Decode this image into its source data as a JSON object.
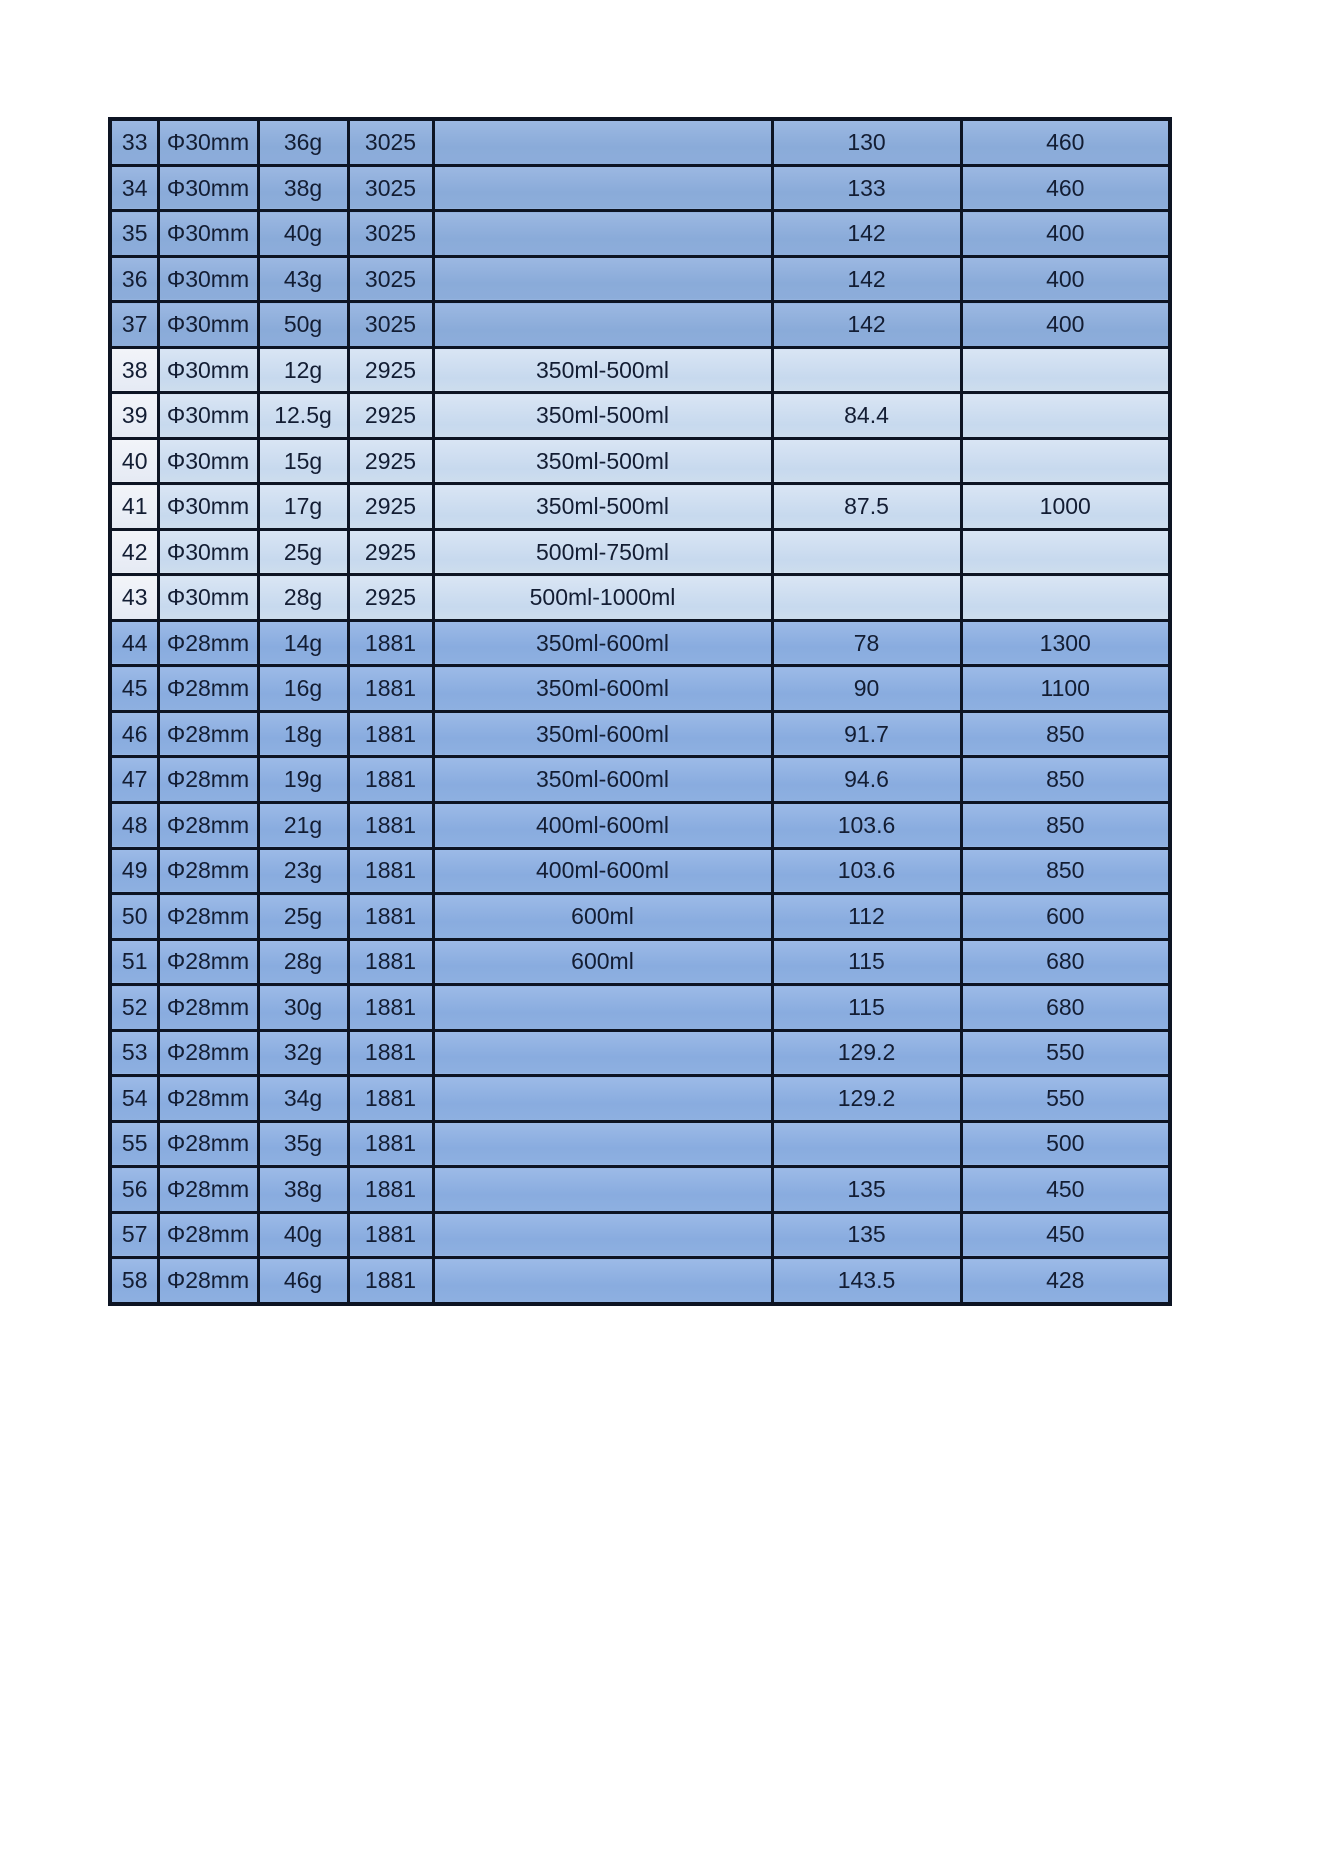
{
  "page": {
    "background": "#ffffff"
  },
  "colors": {
    "border": "#0d1423",
    "text": "#131d33",
    "band_medium_blue": "#8badda",
    "band_light_blue": "#cbdcf0",
    "band_light_blue_row_number": "#e9edf5",
    "band_periwinkle_blue": "#8fb0e1"
  },
  "table": {
    "rows": [
      {
        "no": "33",
        "diameter": "Φ30mm",
        "weight": "36g",
        "neck": "3025",
        "volume": "",
        "val1": "130",
        "val2": "460",
        "band": "a"
      },
      {
        "no": "34",
        "diameter": "Φ30mm",
        "weight": "38g",
        "neck": "3025",
        "volume": "",
        "val1": "133",
        "val2": "460",
        "band": "a"
      },
      {
        "no": "35",
        "diameter": "Φ30mm",
        "weight": "40g",
        "neck": "3025",
        "volume": "",
        "val1": "142",
        "val2": "400",
        "band": "a"
      },
      {
        "no": "36",
        "diameter": "Φ30mm",
        "weight": "43g",
        "neck": "3025",
        "volume": "",
        "val1": "142",
        "val2": "400",
        "band": "a"
      },
      {
        "no": "37",
        "diameter": "Φ30mm",
        "weight": "50g",
        "neck": "3025",
        "volume": "",
        "val1": "142",
        "val2": "400",
        "band": "a"
      },
      {
        "no": "38",
        "diameter": "Φ30mm",
        "weight": "12g",
        "neck": "2925",
        "volume": "350ml-500ml",
        "val1": "",
        "val2": "",
        "band": "b"
      },
      {
        "no": "39",
        "diameter": "Φ30mm",
        "weight": "12.5g",
        "neck": "2925",
        "volume": "350ml-500ml",
        "val1": "84.4",
        "val2": "",
        "band": "b"
      },
      {
        "no": "40",
        "diameter": "Φ30mm",
        "weight": "15g",
        "neck": "2925",
        "volume": "350ml-500ml",
        "val1": "",
        "val2": "",
        "band": "b"
      },
      {
        "no": "41",
        "diameter": "Φ30mm",
        "weight": "17g",
        "neck": "2925",
        "volume": "350ml-500ml",
        "val1": "87.5",
        "val2": "1000",
        "band": "b"
      },
      {
        "no": "42",
        "diameter": "Φ30mm",
        "weight": "25g",
        "neck": "2925",
        "volume": "500ml-750ml",
        "val1": "",
        "val2": "",
        "band": "b"
      },
      {
        "no": "43",
        "diameter": "Φ30mm",
        "weight": "28g",
        "neck": "2925",
        "volume": "500ml-1000ml",
        "val1": "",
        "val2": "",
        "band": "b"
      },
      {
        "no": "44",
        "diameter": "Φ28mm",
        "weight": "14g",
        "neck": "1881",
        "volume": "350ml-600ml",
        "val1": "78",
        "val2": "1300",
        "band": "c"
      },
      {
        "no": "45",
        "diameter": "Φ28mm",
        "weight": "16g",
        "neck": "1881",
        "volume": "350ml-600ml",
        "val1": "90",
        "val2": "1100",
        "band": "c"
      },
      {
        "no": "46",
        "diameter": "Φ28mm",
        "weight": "18g",
        "neck": "1881",
        "volume": "350ml-600ml",
        "val1": "91.7",
        "val2": "850",
        "band": "c"
      },
      {
        "no": "47",
        "diameter": "Φ28mm",
        "weight": "19g",
        "neck": "1881",
        "volume": "350ml-600ml",
        "val1": "94.6",
        "val2": "850",
        "band": "c"
      },
      {
        "no": "48",
        "diameter": "Φ28mm",
        "weight": "21g",
        "neck": "1881",
        "volume": "400ml-600ml",
        "val1": "103.6",
        "val2": "850",
        "band": "c"
      },
      {
        "no": "49",
        "diameter": "Φ28mm",
        "weight": "23g",
        "neck": "1881",
        "volume": "400ml-600ml",
        "val1": "103.6",
        "val2": "850",
        "band": "c"
      },
      {
        "no": "50",
        "diameter": "Φ28mm",
        "weight": "25g",
        "neck": "1881",
        "volume": "600ml",
        "val1": "112",
        "val2": "600",
        "band": "c"
      },
      {
        "no": "51",
        "diameter": "Φ28mm",
        "weight": "28g",
        "neck": "1881",
        "volume": "600ml",
        "val1": "115",
        "val2": "680",
        "band": "c"
      },
      {
        "no": "52",
        "diameter": "Φ28mm",
        "weight": "30g",
        "neck": "1881",
        "volume": "",
        "val1": "115",
        "val2": "680",
        "band": "c"
      },
      {
        "no": "53",
        "diameter": "Φ28mm",
        "weight": "32g",
        "neck": "1881",
        "volume": "",
        "val1": "129.2",
        "val2": "550",
        "band": "c"
      },
      {
        "no": "54",
        "diameter": "Φ28mm",
        "weight": "34g",
        "neck": "1881",
        "volume": "",
        "val1": "129.2",
        "val2": "550",
        "band": "c"
      },
      {
        "no": "55",
        "diameter": "Φ28mm",
        "weight": "35g",
        "neck": "1881",
        "volume": "",
        "val1": "",
        "val2": "500",
        "band": "c"
      },
      {
        "no": "56",
        "diameter": "Φ28mm",
        "weight": "38g",
        "neck": "1881",
        "volume": "",
        "val1": "135",
        "val2": "450",
        "band": "c"
      },
      {
        "no": "57",
        "diameter": "Φ28mm",
        "weight": "40g",
        "neck": "1881",
        "volume": "",
        "val1": "135",
        "val2": "450",
        "band": "c"
      },
      {
        "no": "58",
        "diameter": "Φ28mm",
        "weight": "46g",
        "neck": "1881",
        "volume": "",
        "val1": "143.5",
        "val2": "428",
        "band": "c"
      }
    ]
  }
}
